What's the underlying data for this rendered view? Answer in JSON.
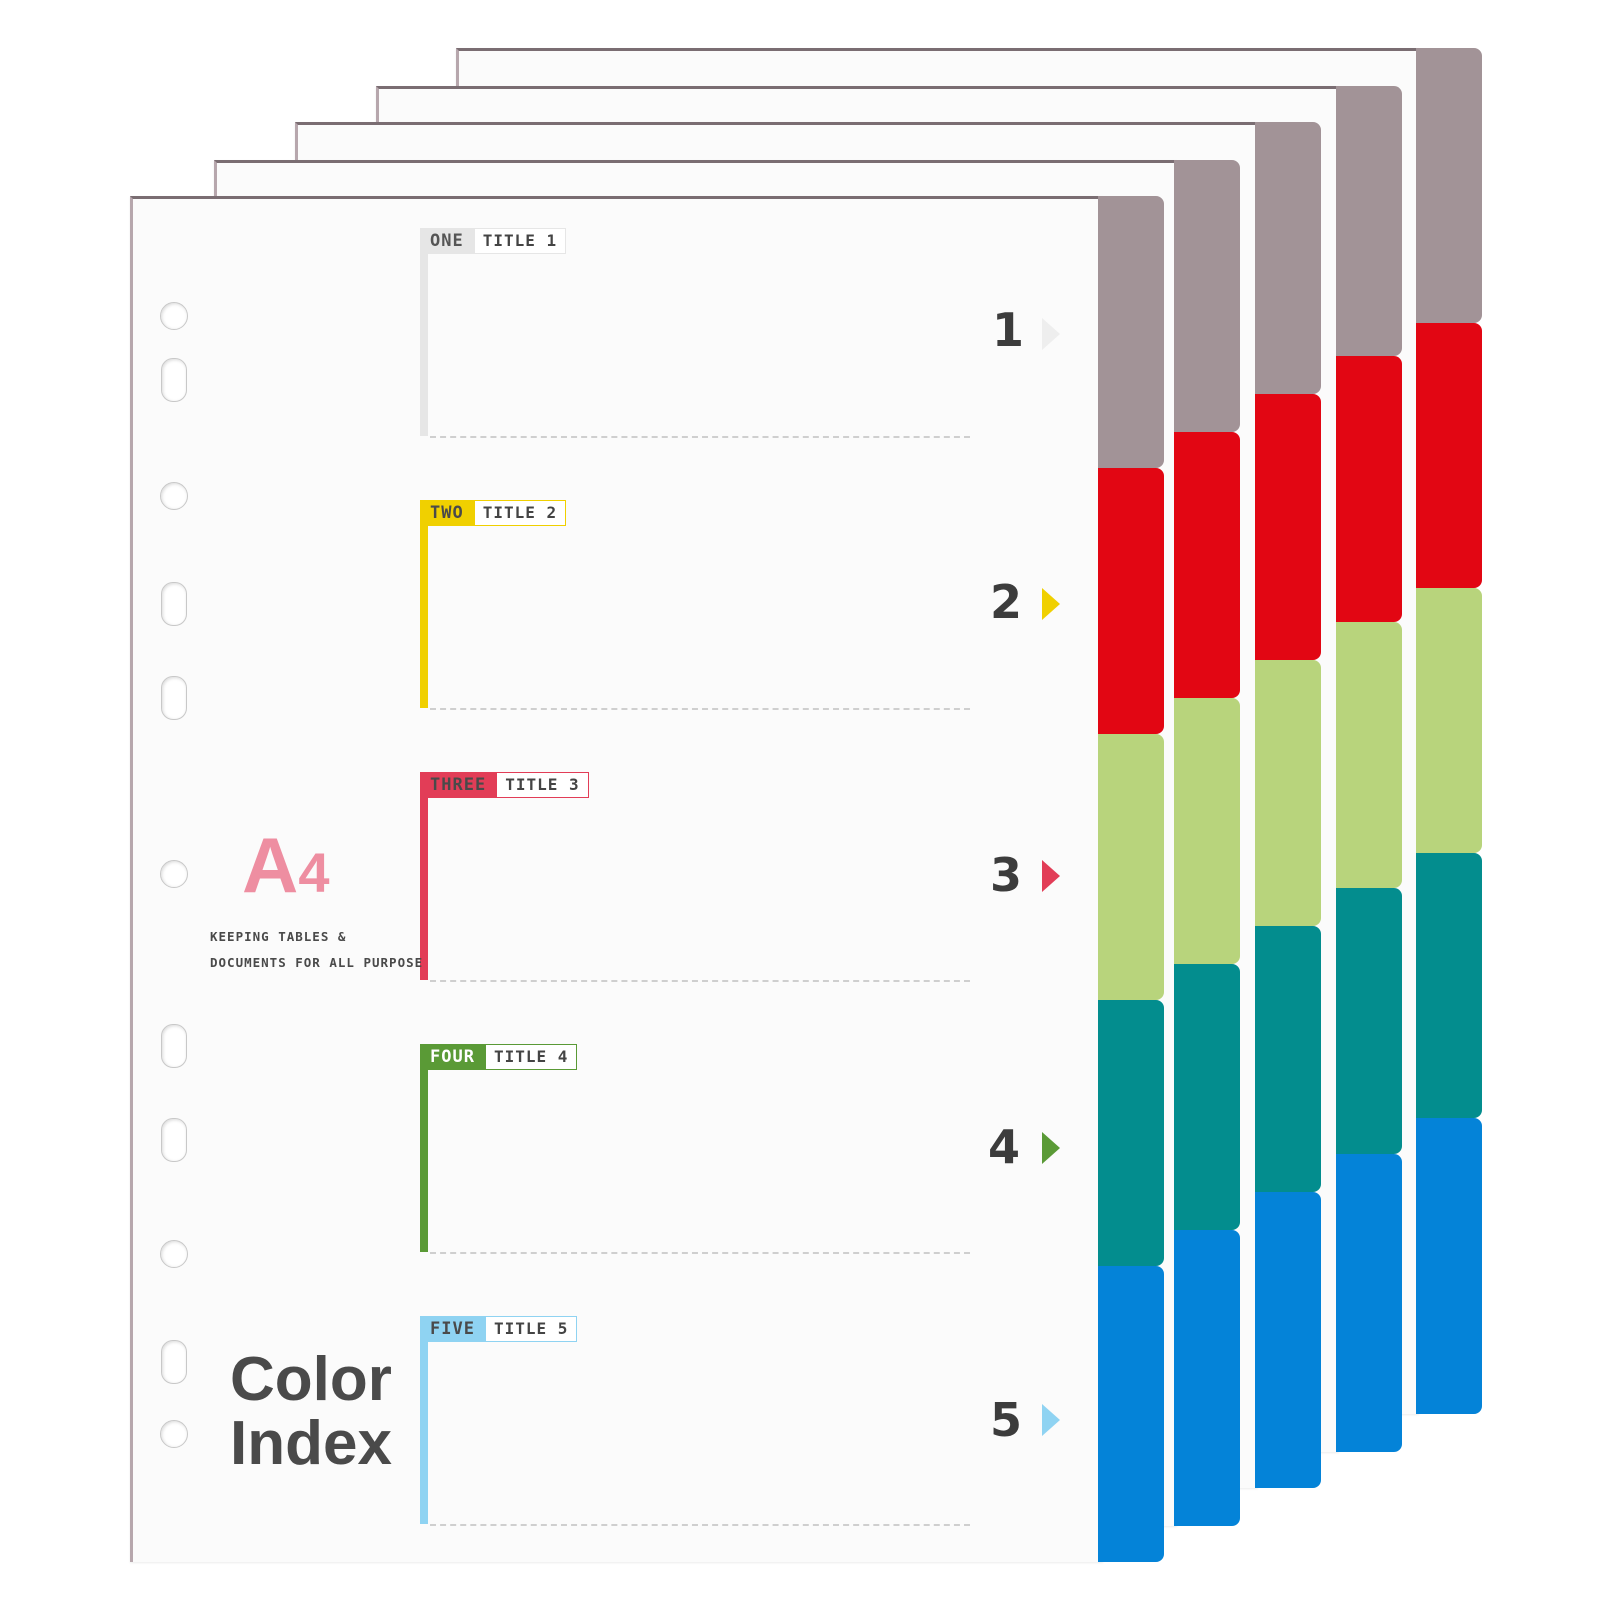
{
  "product": {
    "format": "A4",
    "format_letter": "A",
    "format_digit": "4",
    "tagline": "KEEPING TABLES & DOCUMENTS FOR ALL PURPOSE",
    "tagline_line1": "KEEPING TABLES &",
    "tagline_line2": "DOCUMENTS FOR ALL PURPOSE",
    "name_line1": "Color",
    "name_line2": "Index"
  },
  "sections": [
    {
      "word": "ONE",
      "title": "TITLE 1",
      "number": "1",
      "color": "#e6e6e6",
      "word_color": "#555555"
    },
    {
      "word": "TWO",
      "title": "TITLE 2",
      "number": "2",
      "color": "#f0d000"
    },
    {
      "word": "THREE",
      "title": "TITLE 3",
      "number": "3",
      "color": "#e23d57"
    },
    {
      "word": "FOUR",
      "title": "TITLE 4",
      "number": "4",
      "color": "#5a9a36"
    },
    {
      "word": "FIVE",
      "title": "TITLE 5",
      "number": "5",
      "color": "#8fd3f2"
    }
  ],
  "tab_colors": {
    "grey": "#a29397",
    "red": "#e20613",
    "lime": "#b8d47c",
    "teal": "#038d8e",
    "blue": "#0483d8"
  },
  "sheet_count": 5
}
